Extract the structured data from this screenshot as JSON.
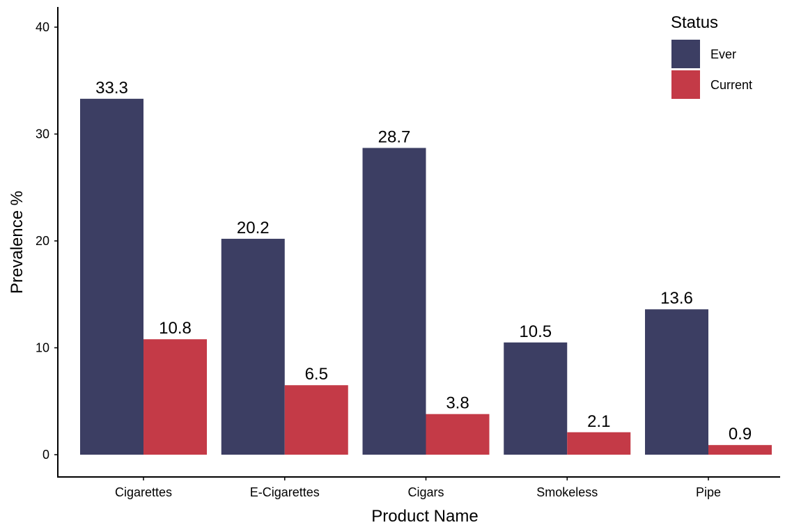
{
  "chart_data": {
    "type": "bar",
    "title": "",
    "xlabel": "Product Name",
    "ylabel": "Prevalence %",
    "ylim": [
      0,
      42
    ],
    "yticks": [
      0,
      10,
      20,
      30,
      40
    ],
    "grid": false,
    "legend": {
      "title": "Status",
      "position": "top-right"
    },
    "categories": [
      "Cigarettes",
      "E-Cigarettes",
      "Cigars",
      "Smokeless",
      "Pipe"
    ],
    "series": [
      {
        "name": "Ever",
        "color": "#3c3e63",
        "values": [
          33.3,
          20.2,
          28.7,
          10.5,
          13.6
        ]
      },
      {
        "name": "Current",
        "color": "#c43a47",
        "values": [
          10.8,
          6.5,
          3.8,
          2.1,
          0.9
        ]
      }
    ],
    "value_labels": [
      [
        "33.3",
        "20.2",
        "28.7",
        "10.5",
        "13.6"
      ],
      [
        "10.8",
        "6.5",
        "3.8",
        "2.1",
        "0.9"
      ]
    ]
  }
}
